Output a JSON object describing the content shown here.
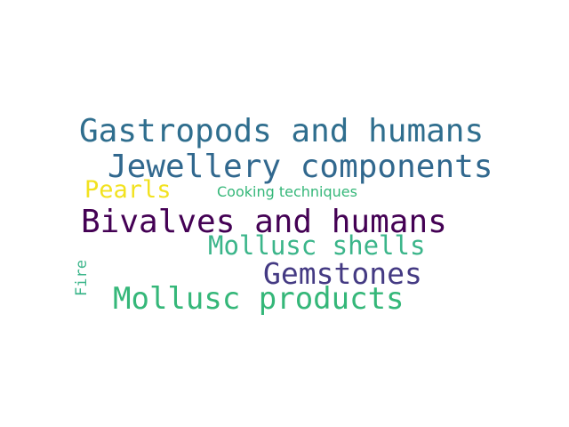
{
  "colors": {
    "background": "#ffffff",
    "dark_purple": "#440154",
    "indigo": "#443a83",
    "steel_blue": "#31688e",
    "teal_blue": "#2a788e",
    "green_teal": "#35b779",
    "sea_green": "#3bb58a",
    "yellow": "#f2e21f"
  },
  "words": {
    "gastropods": {
      "text": "Gastropods and humans",
      "color": "#2f6e8e"
    },
    "jewellery": {
      "text": "Jewellery components",
      "color": "#31688e"
    },
    "pearls": {
      "text": "Pearls",
      "color": "#f2e21f"
    },
    "cooking": {
      "text": "Cooking techniques",
      "color": "#35b779"
    },
    "bivalves": {
      "text": "Bivalves and humans",
      "color": "#440154"
    },
    "shells": {
      "text": "Mollusc shells",
      "color": "#3bb58a"
    },
    "gemstones": {
      "text": "Gemstones",
      "color": "#443a83"
    },
    "fire": {
      "text": "Fire",
      "color": "#3bb58a"
    },
    "products": {
      "text": "Mollusc products",
      "color": "#35b779"
    }
  }
}
